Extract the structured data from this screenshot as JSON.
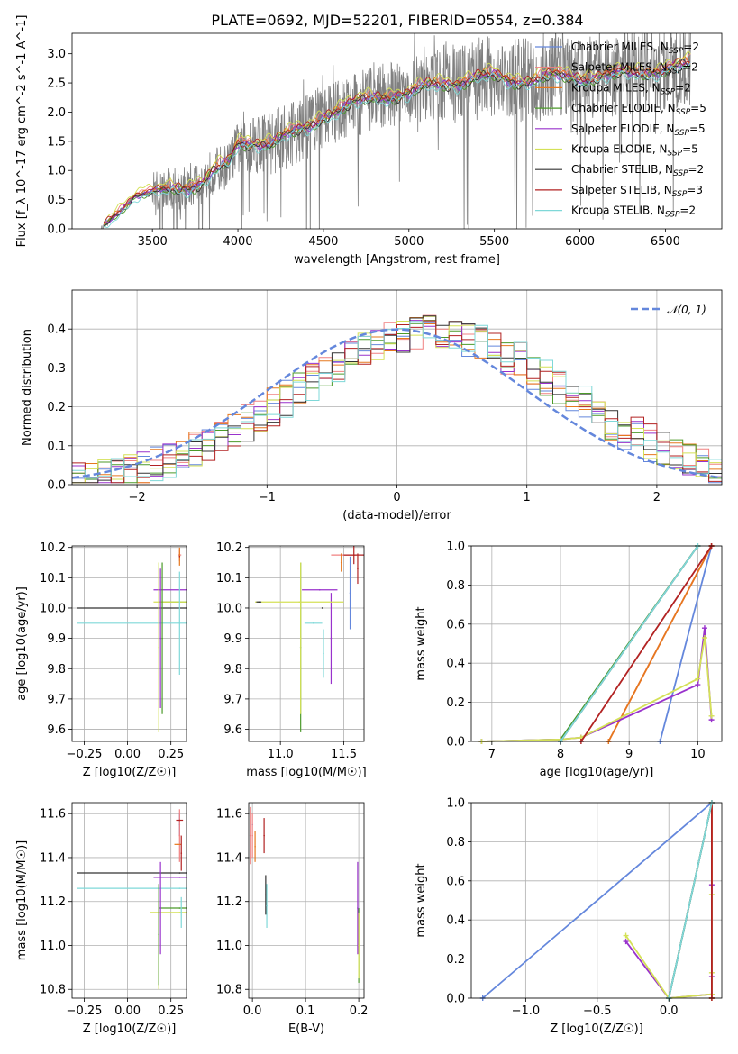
{
  "page": {
    "title": "PLATE=0692, MJD=52201, FIBERID=0554, z=0.384"
  },
  "chart_data": [
    {
      "id": "spectrum",
      "type": "line",
      "xlabel": "wavelength [Angstrom, rest frame]",
      "ylabel": "Flux [f_λ 10^-17 erg cm^-2 s^-1 A^-1]",
      "xlim": [
        3030,
        6830
      ],
      "ylim": [
        0,
        3.35
      ],
      "xticks": [
        3500,
        4000,
        4500,
        5000,
        5500,
        6000,
        6500
      ],
      "yticks": [
        0.0,
        0.5,
        1.0,
        1.5,
        2.0,
        2.5,
        3.0
      ],
      "grid": false,
      "legend_position": "top-right",
      "data_series": {
        "name": "data",
        "color": "#808080",
        "x_range": [
          3200,
          6650
        ]
      },
      "model_anchor_x": [
        3200,
        3400,
        3600,
        3700,
        3750,
        3800,
        3850,
        3950,
        4000,
        4100,
        4200,
        4300,
        4400,
        4500,
        4600,
        4700,
        4800,
        4900,
        5000,
        5100,
        5200,
        5300,
        5400,
        5500,
        5600,
        5700,
        5800,
        5900,
        6000,
        6200,
        6400,
        6650
      ],
      "model_anchor_y": [
        0.0,
        0.58,
        0.66,
        0.72,
        0.78,
        0.82,
        0.98,
        1.1,
        1.45,
        1.5,
        1.48,
        1.6,
        1.72,
        1.95,
        2.05,
        2.15,
        2.25,
        2.3,
        2.3,
        2.42,
        2.5,
        2.52,
        2.58,
        2.6,
        2.55,
        2.55,
        2.58,
        2.6,
        2.6,
        2.62,
        2.7,
        2.8
      ],
      "series": [
        {
          "name": "Chabrier MILES, N_SSP=2",
          "label_main": "Chabrier MILES, N",
          "label_sub": "SSP",
          "label_tail": "=2",
          "color": "#6487dc",
          "offset": 0.0
        },
        {
          "name": "Salpeter MILES, N_SSP=2",
          "label_main": "Salpeter MILES, N",
          "label_sub": "SSP",
          "label_tail": "=2",
          "color": "#f08080",
          "offset": 0.05
        },
        {
          "name": "Kroupa MILES, N_SSP=2",
          "label_main": "Kroupa MILES, N",
          "label_sub": "SSP",
          "label_tail": "=2",
          "color": "#e6781e",
          "offset": 0.02
        },
        {
          "name": "Chabrier ELODIE, N_SSP=5",
          "label_main": "Chabrier ELODIE, N",
          "label_sub": "SSP",
          "label_tail": "=5",
          "color": "#4c9a2a",
          "offset": -0.03
        },
        {
          "name": "Salpeter ELODIE, N_SSP=5",
          "label_main": "Salpeter ELODIE, N",
          "label_sub": "SSP",
          "label_tail": "=5",
          "color": "#9932cc",
          "offset": 0.0
        },
        {
          "name": "Kroupa ELODIE, N_SSP=5",
          "label_main": "Kroupa ELODIE, N",
          "label_sub": "SSP",
          "label_tail": "=5",
          "color": "#d4e157",
          "offset": 0.1
        },
        {
          "name": "Chabrier STELIB, N_SSP=2",
          "label_main": "Chabrier STELIB, N",
          "label_sub": "SSP",
          "label_tail": "=2",
          "color": "#333333",
          "offset": -0.02
        },
        {
          "name": "Salpeter STELIB, N_SSP=3",
          "label_main": "Salpeter STELIB, N",
          "label_sub": "SSP",
          "label_tail": "=3",
          "color": "#b22222",
          "offset": 0.03
        },
        {
          "name": "Kroupa STELIB, N_SSP=2",
          "label_main": "Kroupa STELIB, N",
          "label_sub": "SSP",
          "label_tail": "=2",
          "color": "#7fd8d8",
          "offset": -0.06
        }
      ]
    },
    {
      "id": "residuals",
      "type": "line",
      "xlabel": "(data-model)/error",
      "ylabel": "Normed distribution",
      "xlim": [
        -2.5,
        2.5
      ],
      "ylim": [
        0,
        0.5
      ],
      "xticks": [
        -2,
        -1,
        0,
        1,
        2
      ],
      "yticks": [
        0.0,
        0.1,
        0.2,
        0.3,
        0.4
      ],
      "grid": true,
      "legend": "𝒩(0, 1)",
      "legend_position": "top-right",
      "normal_mu": 0,
      "normal_sigma": 1,
      "normal_color": "#6487dc",
      "bin_width": 0.1
    },
    {
      "id": "Z-age",
      "type": "scatter",
      "xlabel": "Z [log10(Z/Z☉)]",
      "ylabel": "age [log10(age/yr)]",
      "xlim": [
        -0.32,
        0.34
      ],
      "ylim": [
        9.56,
        10.205
      ],
      "xticks": [
        -0.25,
        0.0,
        0.25
      ],
      "yticks": [
        9.6,
        9.7,
        9.8,
        9.9,
        10.0,
        10.1,
        10.2
      ],
      "grid": true,
      "points": [
        {
          "series": 0,
          "x": 0.3,
          "y": 10.175,
          "xerr": 0.0,
          "yerr": 0.0
        },
        {
          "series": 1,
          "x": 0.3,
          "y": 10.175,
          "xerr": 0.01,
          "yerr": 0.02
        },
        {
          "series": 2,
          "x": 0.3,
          "y": 10.17,
          "xerr": 0.0,
          "yerr": 0.03
        },
        {
          "series": 3,
          "x": 0.3,
          "y": 10.02,
          "xerr": 0.12,
          "yerr": 0.0
        },
        {
          "series": 4,
          "x": 0.3,
          "y": 10.06,
          "xerr": 0.15,
          "yerr": 0.0
        },
        {
          "series": 5,
          "x": 0.3,
          "y": 10.02,
          "xerr": 0.15,
          "yerr": 0.0
        },
        {
          "series": 6,
          "x": 0.3,
          "y": 10.0,
          "xerr": 0.59,
          "yerr": 0.0
        },
        {
          "series": 7,
          "x": 0.3,
          "y": 10.17,
          "xerr": 0.0,
          "yerr": 0.0
        },
        {
          "series": 8,
          "x": 0.3,
          "y": 9.95,
          "xerr": 0.59,
          "yerr": 0.17
        },
        {
          "series": 4,
          "x": 0.19,
          "y": 9.9,
          "xerr": 0.0,
          "yerr": 0.23
        },
        {
          "series": 5,
          "x": 0.18,
          "y": 9.87,
          "xerr": 0.0,
          "yerr": 0.28
        },
        {
          "series": 3,
          "x": 0.2,
          "y": 9.9,
          "xerr": 0.0,
          "yerr": 0.25
        }
      ]
    },
    {
      "id": "mass-age",
      "type": "scatter",
      "xlabel": "mass [log10(M/M☉)]",
      "ylabel": "",
      "xlim": [
        10.75,
        11.66
      ],
      "ylim": [
        9.56,
        10.205
      ],
      "xticks": [
        11.0,
        11.5
      ],
      "yticks": [
        9.6,
        9.7,
        9.8,
        9.9,
        10.0,
        10.1,
        10.2
      ],
      "grid": true,
      "points": [
        {
          "series": 0,
          "x": 11.55,
          "y": 10.05,
          "xerr": 0.0,
          "yerr": 0.12
        },
        {
          "series": 1,
          "x": 11.5,
          "y": 10.175,
          "xerr": 0.1,
          "yerr": 0.0
        },
        {
          "series": 2,
          "x": 11.48,
          "y": 10.15,
          "xerr": 0.0,
          "yerr": 0.03
        },
        {
          "series": 3,
          "x": 11.16,
          "y": 9.87,
          "xerr": 0.0,
          "yerr": 0.28
        },
        {
          "series": 4,
          "x": 11.31,
          "y": 10.06,
          "xerr": 0.14,
          "yerr": 0.0
        },
        {
          "series": 4,
          "x": 11.4,
          "y": 9.9,
          "xerr": 0.0,
          "yerr": 0.15
        },
        {
          "series": 5,
          "x": 11.15,
          "y": 10.02,
          "xerr": 0.35,
          "yerr": 0.0
        },
        {
          "series": 6,
          "x": 11.33,
          "y": 10.0,
          "xerr": 0.0,
          "yerr": 0.0
        },
        {
          "series": 7,
          "x": 11.58,
          "y": 10.175,
          "xerr": 0.08,
          "yerr": 0.03
        },
        {
          "series": 7,
          "x": 11.61,
          "y": 10.13,
          "xerr": 0.0,
          "yerr": 0.05
        },
        {
          "series": 8,
          "x": 11.26,
          "y": 9.95,
          "xerr": 0.07,
          "yerr": 0.0
        },
        {
          "series": 8,
          "x": 11.34,
          "y": 9.85,
          "xerr": 0.0,
          "yerr": 0.08
        },
        {
          "series": 6,
          "x": 10.83,
          "y": 10.02,
          "xerr": 0.02,
          "yerr": 0.0
        },
        {
          "series": 5,
          "x": 11.16,
          "y": 9.9,
          "xerr": 0.0,
          "yerr": 0.25
        }
      ]
    },
    {
      "id": "age-weight",
      "type": "line",
      "xlabel": "age [log10(age/yr)]",
      "ylabel": "mass weight",
      "xlim": [
        6.7,
        10.35
      ],
      "ylim": [
        0,
        1.0
      ],
      "xticks": [
        7,
        8,
        9,
        10
      ],
      "yticks": [
        0.0,
        0.2,
        0.4,
        0.6,
        0.8,
        1.0
      ],
      "grid": true,
      "lines": [
        {
          "series": 0,
          "x": [
            9.45,
            10.2
          ],
          "y": [
            0.0,
            1.0
          ]
        },
        {
          "series": 1,
          "x": [
            8.7,
            10.2
          ],
          "y": [
            0.0,
            1.0
          ]
        },
        {
          "series": 2,
          "x": [
            8.7,
            10.2
          ],
          "y": [
            0.0,
            1.0
          ]
        },
        {
          "series": 3,
          "x": [
            6.85,
            8.0,
            10.0
          ],
          "y": [
            0.0,
            0.01,
            1.0
          ]
        },
        {
          "series": 4,
          "x": [
            6.85,
            8.0,
            8.3,
            10.0,
            10.1,
            10.2
          ],
          "y": [
            0.0,
            0.01,
            0.02,
            0.29,
            0.58,
            0.11
          ]
        },
        {
          "series": 5,
          "x": [
            6.85,
            8.0,
            8.3,
            10.0,
            10.1,
            10.2
          ],
          "y": [
            0.0,
            0.01,
            0.02,
            0.32,
            0.53,
            0.13
          ]
        },
        {
          "series": 6,
          "x": [
            8.0,
            10.0
          ],
          "y": [
            0.0,
            1.0
          ]
        },
        {
          "series": 7,
          "x": [
            8.3,
            10.2
          ],
          "y": [
            0.0,
            1.0
          ]
        },
        {
          "series": 8,
          "x": [
            8.0,
            10.0
          ],
          "y": [
            0.0,
            1.0
          ]
        }
      ]
    },
    {
      "id": "Z-mass",
      "type": "scatter",
      "xlabel": "Z [log10(Z/Z☉)]",
      "ylabel": "mass [log10(M/M☉)]",
      "xlim": [
        -0.32,
        0.34
      ],
      "ylim": [
        10.76,
        11.65
      ],
      "xticks": [
        -0.25,
        0.0,
        0.25
      ],
      "yticks": [
        10.8,
        11.0,
        11.2,
        11.4,
        11.6
      ],
      "grid": true,
      "points": [
        {
          "series": 0,
          "x": 0.3,
          "y": 11.55,
          "xerr": 0.0,
          "yerr": 0.05
        },
        {
          "series": 1,
          "x": 0.3,
          "y": 11.5,
          "xerr": 0.0,
          "yerr": 0.12
        },
        {
          "series": 2,
          "x": 0.29,
          "y": 11.46,
          "xerr": 0.02,
          "yerr": 0.0
        },
        {
          "series": 3,
          "x": 0.3,
          "y": 11.17,
          "xerr": 0.12,
          "yerr": 0.0
        },
        {
          "series": 4,
          "x": 0.3,
          "y": 11.31,
          "xerr": 0.15,
          "yerr": 0.0
        },
        {
          "series": 5,
          "x": 0.3,
          "y": 11.15,
          "xerr": 0.17,
          "yerr": 0.0
        },
        {
          "series": 6,
          "x": 0.3,
          "y": 11.33,
          "xerr": 0.59,
          "yerr": 0.0
        },
        {
          "series": 7,
          "x": 0.3,
          "y": 11.57,
          "xerr": 0.02,
          "yerr": 0.0
        },
        {
          "series": 7,
          "x": 0.31,
          "y": 11.42,
          "xerr": 0.0,
          "yerr": 0.08
        },
        {
          "series": 8,
          "x": 0.3,
          "y": 11.26,
          "xerr": 0.59,
          "yerr": 0.0
        },
        {
          "series": 8,
          "x": 0.31,
          "y": 11.15,
          "xerr": 0.0,
          "yerr": 0.07
        },
        {
          "series": 4,
          "x": 0.19,
          "y": 11.17,
          "xerr": 0.0,
          "yerr": 0.21
        },
        {
          "series": 5,
          "x": 0.18,
          "y": 11.0,
          "xerr": 0.0,
          "yerr": 0.2
        },
        {
          "series": 3,
          "x": 0.18,
          "y": 11.05,
          "xerr": 0.0,
          "yerr": 0.23
        }
      ]
    },
    {
      "id": "EBV-mass",
      "type": "scatter",
      "xlabel": "E(B-V)",
      "ylabel": "",
      "xlim": [
        -0.007,
        0.21
      ],
      "ylim": [
        10.76,
        11.65
      ],
      "xticks": [
        0.0,
        0.1,
        0.2
      ],
      "yticks": [
        10.8,
        11.0,
        11.2,
        11.4,
        11.6
      ],
      "grid": true,
      "points": [
        {
          "series": 0,
          "x": 0.0,
          "y": 11.55,
          "xerr": 0.0,
          "yerr": 0.0
        },
        {
          "series": 1,
          "x": 0.0,
          "y": 11.5,
          "xerr": 0.0,
          "yerr": 0.1
        },
        {
          "series": 2,
          "x": 0.005,
          "y": 11.45,
          "xerr": 0.0,
          "yerr": 0.07
        },
        {
          "series": 3,
          "x": 0.2,
          "y": 11.0,
          "xerr": 0.0,
          "yerr": 0.17
        },
        {
          "series": 4,
          "x": 0.198,
          "y": 11.17,
          "xerr": 0.0,
          "yerr": 0.21
        },
        {
          "series": 5,
          "x": 0.2,
          "y": 11.0,
          "xerr": 0.0,
          "yerr": 0.15
        },
        {
          "series": 6,
          "x": 0.025,
          "y": 11.23,
          "xerr": 0.0,
          "yerr": 0.09
        },
        {
          "series": 7,
          "x": 0.022,
          "y": 11.5,
          "xerr": 0.0,
          "yerr": 0.08
        },
        {
          "series": 8,
          "x": 0.027,
          "y": 11.18,
          "xerr": 0.0,
          "yerr": 0.1
        },
        {
          "series": 1,
          "x": -0.004,
          "y": 11.5,
          "xerr": 0.0,
          "yerr": 0.13
        }
      ]
    },
    {
      "id": "Z-weight",
      "type": "line",
      "xlabel": "Z [log10(Z/Z☉)]",
      "ylabel": "mass weight",
      "xlim": [
        -1.38,
        0.37
      ],
      "ylim": [
        0,
        1.0
      ],
      "xticks": [
        -1.0,
        -0.5,
        0.0
      ],
      "yticks": [
        0.0,
        0.2,
        0.4,
        0.6,
        0.8,
        1.0
      ],
      "grid": true,
      "lines": [
        {
          "series": 0,
          "x": [
            -1.3,
            0.3
          ],
          "y": [
            0.0,
            1.0
          ]
        },
        {
          "series": 1,
          "x": [
            0.3,
            0.3
          ],
          "y": [
            0.0,
            1.0
          ]
        },
        {
          "series": 2,
          "x": [
            0.3,
            0.3
          ],
          "y": [
            0.0,
            1.0
          ]
        },
        {
          "series": 3,
          "x": [
            0.0,
            0.3
          ],
          "y": [
            0.0,
            1.0
          ]
        },
        {
          "series": 4,
          "x": [
            -0.3,
            0.0,
            0.3,
            0.3,
            0.3,
            0.3
          ],
          "y": [
            0.29,
            0.0,
            0.02,
            0.11,
            0.58,
            0.0
          ]
        },
        {
          "series": 5,
          "x": [
            -0.3,
            0.0,
            0.3,
            0.3,
            0.3,
            0.3
          ],
          "y": [
            0.32,
            0.0,
            0.02,
            0.13,
            0.53,
            0.0
          ]
        },
        {
          "series": 6,
          "x": [
            0.0,
            0.3
          ],
          "y": [
            0.0,
            1.0
          ]
        },
        {
          "series": 7,
          "x": [
            0.3,
            0.3
          ],
          "y": [
            0.0,
            1.0
          ]
        },
        {
          "series": 8,
          "x": [
            0.0,
            0.3
          ],
          "y": [
            0.0,
            1.0
          ]
        }
      ]
    }
  ]
}
